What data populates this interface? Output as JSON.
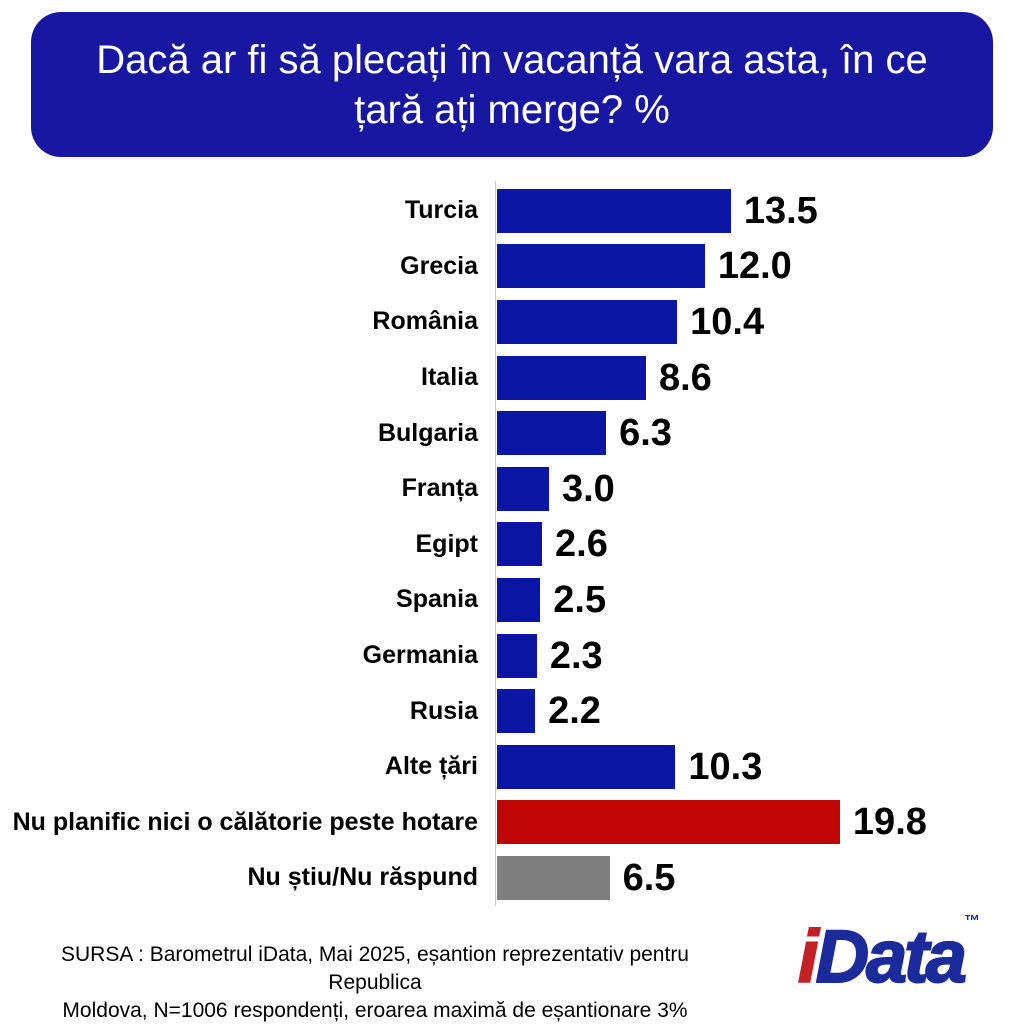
{
  "title": {
    "full": "Dacă ar fi să plecați în vacanță vara asta, în ce țară ați merge? %",
    "lines": [
      "Dacă ar fi să plecați în vacanță vara asta, în ce",
      "țară ați merge? %"
    ]
  },
  "chart_data": {
    "type": "bar",
    "orientation": "horizontal",
    "title": "Dacă ar fi să plecați în vacanță vara asta, în ce țară ați merge? %",
    "unit": "%",
    "xlim": [
      0,
      20
    ],
    "grid": false,
    "legend": false,
    "categories": [
      "Turcia",
      "Grecia",
      "România",
      "Italia",
      "Bulgaria",
      "Franța",
      "Egipt",
      "Spania",
      "Germania",
      "Rusia",
      "Alte țări",
      "Nu planific nici o călătorie peste hotare",
      "Nu știu/Nu răspund"
    ],
    "values": [
      13.5,
      12.0,
      10.4,
      8.6,
      6.3,
      3.0,
      2.6,
      2.5,
      2.3,
      2.2,
      10.3,
      19.8,
      6.5
    ],
    "value_labels": [
      "13.5",
      "12.0",
      "10.4",
      "8.6",
      "6.3",
      "3.0",
      "2.6",
      "2.5",
      "2.3",
      "2.2",
      "10.3",
      "19.8",
      "6.5"
    ],
    "bar_colors": [
      "#0b16a4",
      "#0b16a4",
      "#0b16a4",
      "#0b16a4",
      "#0b16a4",
      "#0b16a4",
      "#0b16a4",
      "#0b16a4",
      "#0b16a4",
      "#0b16a4",
      "#0b16a4",
      "#c00505",
      "#7f7f7f"
    ]
  },
  "palette": {
    "title_background": "#1717a1",
    "bar_blue": "#0b16a4",
    "bar_red": "#c00505",
    "bar_gray": "#7f7f7f",
    "logo_red": "#c42127",
    "logo_blue": "#1b2b9b"
  },
  "footer": {
    "lines": [
      "SURSA : Barometrul iData, Mai 2025, eșantion reprezentativ pentru Republica",
      "Moldova, N=1006 respondenți, eroarea maximă de eșantionare 3%"
    ]
  },
  "logo": {
    "i_text": "i",
    "data_text": "Data",
    "tm": "™"
  }
}
